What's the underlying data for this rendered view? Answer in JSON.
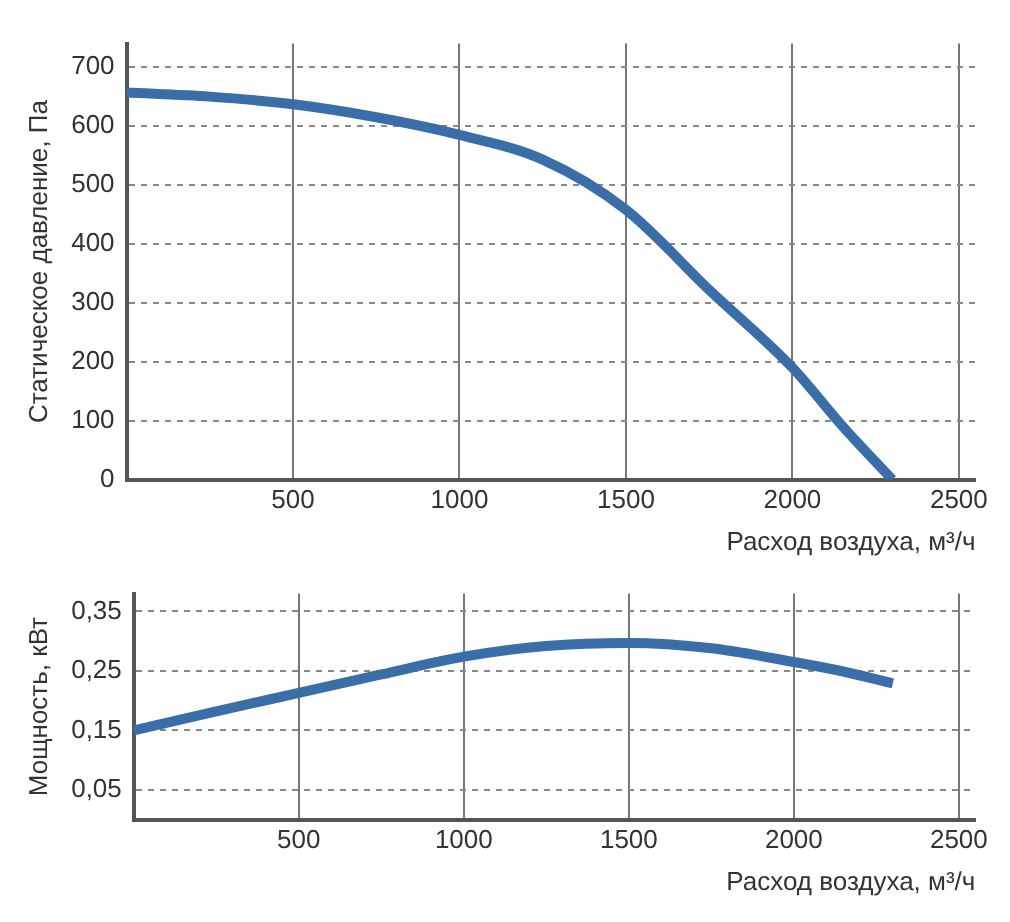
{
  "chart_data": [
    {
      "type": "line",
      "xlabel": "Расход воздуха, м³/ч",
      "ylabel": "Статическое давление, Па",
      "x": [
        0,
        250,
        500,
        750,
        1000,
        1250,
        1500,
        1750,
        2000,
        2150,
        2300
      ],
      "series": [
        {
          "color": "#3a6ea8",
          "values": [
            657,
            650,
            637,
            615,
            585,
            543,
            458,
            322,
            190,
            91,
            0
          ]
        }
      ],
      "xlim": [
        0,
        2550
      ],
      "xticks": [
        500,
        1000,
        1500,
        2000,
        2500
      ],
      "ylim": [
        0,
        740
      ],
      "yticks": [
        0,
        100,
        200,
        300,
        400,
        500,
        600,
        700
      ],
      "grid": true,
      "legend": false,
      "marker": "none",
      "line_style": "solid"
    },
    {
      "type": "line",
      "xlabel": "Расход воздуха, м³/ч",
      "ylabel": "Мощность, кВт",
      "x": [
        0,
        250,
        500,
        750,
        1000,
        1250,
        1500,
        1750,
        2000,
        2150,
        2300
      ],
      "series": [
        {
          "color": "#3a6ea8",
          "values": [
            0.15,
            0.182,
            0.213,
            0.244,
            0.274,
            0.292,
            0.297,
            0.288,
            0.265,
            0.249,
            0.229
          ]
        }
      ],
      "xlim": [
        0,
        2550
      ],
      "xticks": [
        500,
        1000,
        1500,
        2000,
        2500
      ],
      "ylim": [
        0,
        0.38
      ],
      "yticks": [
        {
          "value": 0.05,
          "label": "0,05"
        },
        {
          "value": 0.15,
          "label": "0,15"
        },
        {
          "value": 0.25,
          "label": "0,25"
        },
        {
          "value": 0.35,
          "label": "0,35"
        }
      ],
      "grid": true,
      "legend": false,
      "marker": "none",
      "line_style": "solid"
    }
  ]
}
